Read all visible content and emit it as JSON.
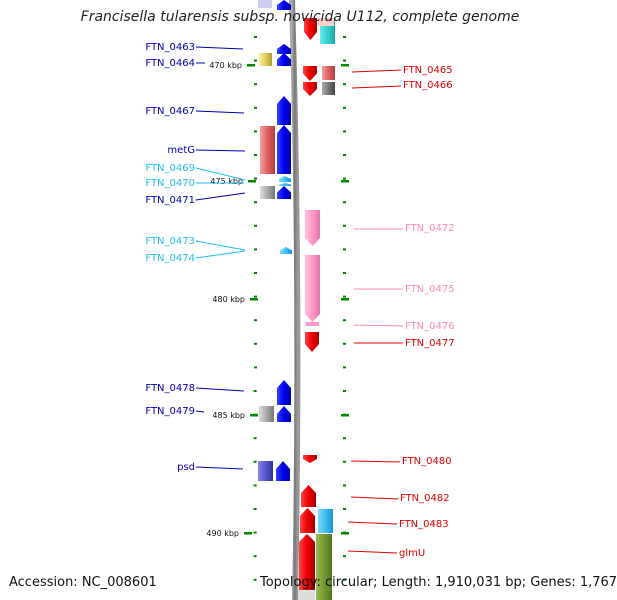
{
  "title": "Francisella tularensis subsp. novicida U112, complete genome",
  "footer": {
    "accession": "Accession: NC_008601",
    "summary": "Topology: circular; Length: 1,910,031 bp; Genes: 1,767"
  },
  "scale_ticks": [
    {
      "label": "470 kbp"
    },
    {
      "label": "475 kbp"
    },
    {
      "label": "480 kbp"
    },
    {
      "label": "485 kbp"
    },
    {
      "label": "490 kbp"
    }
  ],
  "colors": {
    "forward": "#0000ee",
    "forward_light": "#22bbee",
    "reverse": "#ee0000",
    "reverse_light": "#ff88bb",
    "backbone": "#888888",
    "tick": "#008800"
  },
  "genes_left": [
    {
      "name": "FTN_0463",
      "color": "#0000aa"
    },
    {
      "name": "FTN_0464",
      "color": "#0000aa"
    },
    {
      "name": "FTN_0467",
      "color": "#0000aa"
    },
    {
      "name": "metG",
      "color": "#0000aa"
    },
    {
      "name": "FTN_0469",
      "color": "#22bbee"
    },
    {
      "name": "FTN_0470",
      "color": "#22bbee"
    },
    {
      "name": "FTN_0471",
      "color": "#0000aa"
    },
    {
      "name": "FTN_0473",
      "color": "#22bbee"
    },
    {
      "name": "FTN_0474",
      "color": "#22bbee"
    },
    {
      "name": "FTN_0478",
      "color": "#0000aa"
    },
    {
      "name": "FTN_0479",
      "color": "#0000aa"
    },
    {
      "name": "psd",
      "color": "#0000aa"
    }
  ],
  "genes_right": [
    {
      "name": "FTN_0465",
      "color": "#dd0000"
    },
    {
      "name": "FTN_0466",
      "color": "#dd0000"
    },
    {
      "name": "FTN_0472",
      "color": "#ff88bb"
    },
    {
      "name": "FTN_0475",
      "color": "#ff88bb"
    },
    {
      "name": "FTN_0476",
      "color": "#ff88bb"
    },
    {
      "name": "FTN_0477",
      "color": "#dd0000"
    },
    {
      "name": "FTN_0480",
      "color": "#dd0000"
    },
    {
      "name": "FTN_0482",
      "color": "#dd0000"
    },
    {
      "name": "FTN_0483",
      "color": "#dd0000"
    },
    {
      "name": "glmU",
      "color": "#dd0000"
    }
  ]
}
